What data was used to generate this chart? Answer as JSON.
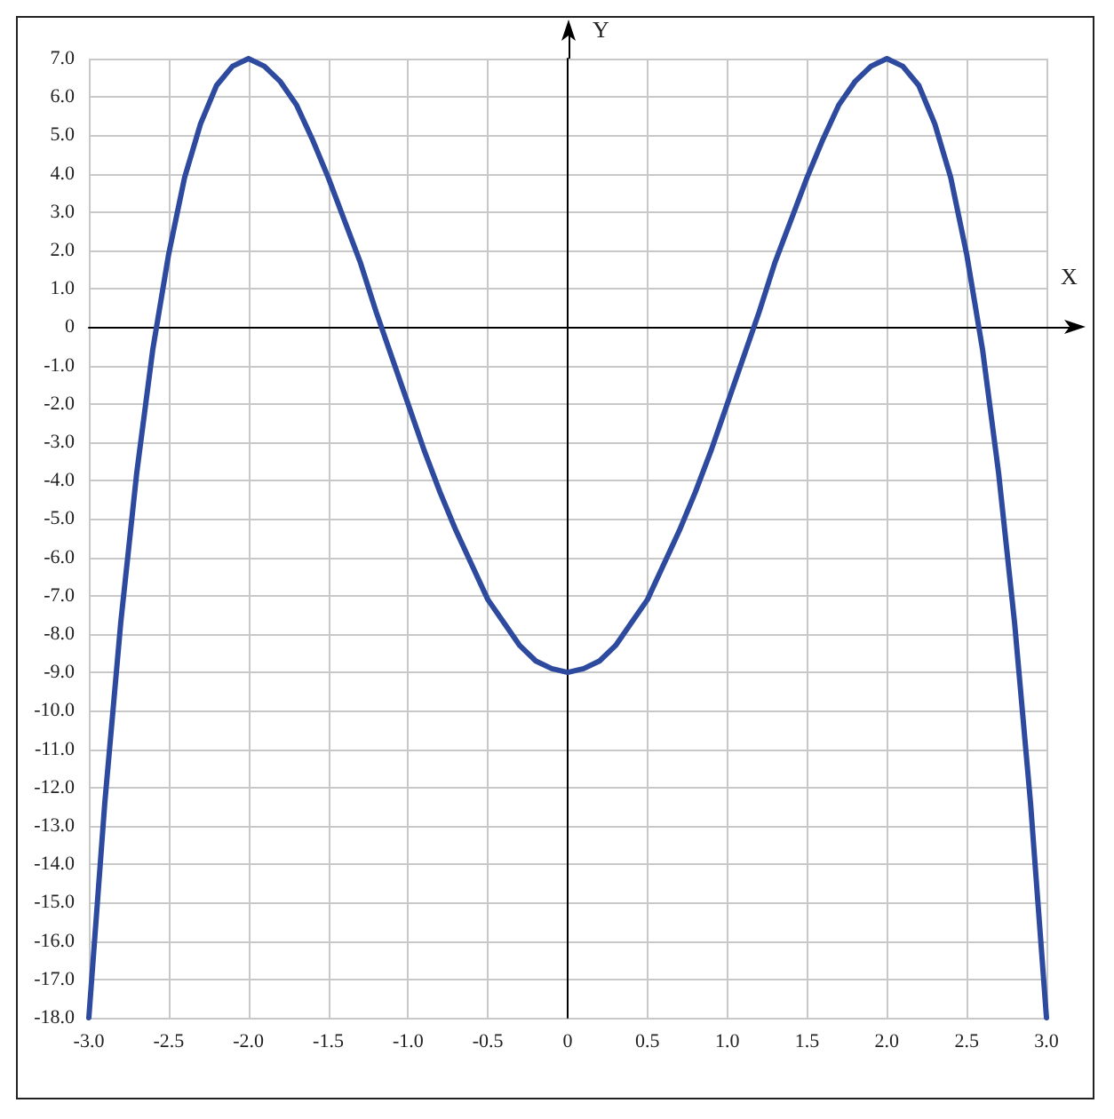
{
  "chart_data": {
    "type": "line",
    "xlabel": "X",
    "ylabel": "Y",
    "x": [
      -3.0,
      -2.9,
      -2.8,
      -2.7,
      -2.6,
      -2.5,
      -2.4,
      -2.3,
      -2.2,
      -2.1,
      -2.0,
      -1.9,
      -1.8,
      -1.7,
      -1.6,
      -1.5,
      -1.4,
      -1.3,
      -1.2,
      -1.1,
      -1.0,
      -0.9,
      -0.8,
      -0.7,
      -0.6,
      -0.5,
      -0.4,
      -0.3,
      -0.2,
      -0.1,
      0,
      0.1,
      0.2,
      0.3,
      0.4,
      0.5,
      0.6,
      0.7,
      0.8,
      0.9,
      1.0,
      1.1,
      1.2,
      1.3,
      1.4,
      1.5,
      1.6,
      1.7,
      1.8,
      1.9,
      2.0,
      2.1,
      2.2,
      2.3,
      2.4,
      2.5,
      2.6,
      2.7,
      2.8,
      2.9,
      3.0
    ],
    "series": [
      {
        "color": "#2e4a9e",
        "values": [
          -18,
          -12.4,
          -7.7,
          -3.8,
          -0.6,
          1.9,
          3.9,
          5.3,
          6.3,
          6.8,
          7,
          6.8,
          6.4,
          5.8,
          4.9,
          3.9,
          2.8,
          1.7,
          0.4,
          -0.8,
          -2,
          -3.2,
          -4.3,
          -5.3,
          -6.2,
          -7.1,
          -7.7,
          -8.3,
          -8.7,
          -8.9,
          -9,
          -8.9,
          -8.7,
          -8.3,
          -7.7,
          -7.1,
          -6.2,
          -5.3,
          -4.3,
          -3.2,
          -2,
          -0.8,
          0.4,
          1.7,
          2.8,
          3.9,
          4.9,
          5.8,
          6.4,
          6.8,
          7,
          6.8,
          6.3,
          5.3,
          3.9,
          1.9,
          -0.6,
          -3.8,
          -7.7,
          -12.4,
          -18
        ]
      }
    ],
    "xlim": [
      -3,
      3
    ],
    "ylim": [
      -18,
      7
    ],
    "xticks": [
      {
        "value": -3,
        "label": "-3.0"
      },
      {
        "value": -2.5,
        "label": "-2.5"
      },
      {
        "value": -2,
        "label": "-2.0"
      },
      {
        "value": -1.5,
        "label": "-1.5"
      },
      {
        "value": -1,
        "label": "-1.0"
      },
      {
        "value": -0.5,
        "label": "-0.5"
      },
      0,
      0.5,
      {
        "value": 1,
        "label": "1.0"
      },
      1.5,
      {
        "value": 2,
        "label": "2.0"
      },
      2.5,
      {
        "value": 3,
        "label": "3.0"
      }
    ],
    "yticks": [
      {
        "value": -18,
        "label": "-18.0"
      },
      {
        "value": -17,
        "label": "-17.0"
      },
      {
        "value": -16,
        "label": "-16.0"
      },
      {
        "value": -15,
        "label": "-15.0"
      },
      {
        "value": -14,
        "label": "-14.0"
      },
      {
        "value": -13,
        "label": "-13.0"
      },
      {
        "value": -12,
        "label": "-12.0"
      },
      {
        "value": -11,
        "label": "-11.0"
      },
      {
        "value": -10,
        "label": "-10.0"
      },
      {
        "value": -9,
        "label": "-9.0"
      },
      {
        "value": -8,
        "label": "-8.0"
      },
      {
        "value": -7,
        "label": "-7.0"
      },
      {
        "value": -6,
        "label": "-6.0"
      },
      {
        "value": -5,
        "label": "-5.0"
      },
      {
        "value": -4,
        "label": "-4.0"
      },
      {
        "value": -3,
        "label": "-3.0"
      },
      {
        "value": -2,
        "label": "-2.0"
      },
      {
        "value": -1,
        "label": "-1.0"
      },
      0,
      {
        "value": 1,
        "label": "1.0"
      },
      {
        "value": 2,
        "label": "2.0"
      },
      {
        "value": 3,
        "label": "3.0"
      },
      {
        "value": 4,
        "label": "4.0"
      },
      {
        "value": 5,
        "label": "5.0"
      },
      {
        "value": 6,
        "label": "6.0"
      },
      {
        "value": 7,
        "label": "7.0"
      }
    ],
    "grid": true,
    "marker": "none",
    "line_style": "solid"
  }
}
